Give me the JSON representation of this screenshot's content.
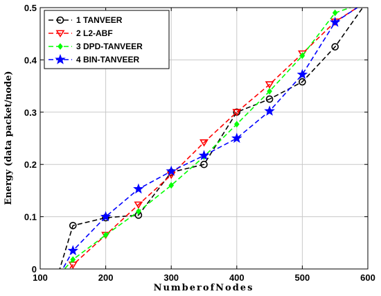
{
  "chart_data": {
    "type": "line",
    "xlabel": "NumberofNodes",
    "ylabel": "Energy (data packet/node)",
    "xlim": [
      100,
      600
    ],
    "ylim": [
      0,
      0.5
    ],
    "xticks": [
      100,
      200,
      300,
      400,
      500,
      600
    ],
    "yticks": [
      0,
      0.1,
      0.2,
      0.3,
      0.4,
      0.5
    ],
    "xtick_labels": [
      "100",
      "200",
      "300",
      "400",
      "500",
      "600"
    ],
    "ytick_labels": [
      "0",
      "0.1",
      "0.2",
      "0.3",
      "0.4",
      "0.5"
    ],
    "grid": true,
    "legend_position": "top-left",
    "series": [
      {
        "name": "1 TANVEER",
        "color": "#000000",
        "marker": "circle",
        "x": [
          125,
          150,
          200,
          250,
          300,
          350,
          400,
          450,
          500,
          550,
          595
        ],
        "y": [
          -0.02,
          0.083,
          0.098,
          0.103,
          0.185,
          0.2,
          0.3,
          0.325,
          0.358,
          0.425,
          0.505
        ],
        "marker_x": [
          150,
          200,
          250,
          300,
          350,
          400,
          450,
          500,
          550
        ],
        "marker_y": [
          0.083,
          0.098,
          0.103,
          0.185,
          0.2,
          0.3,
          0.325,
          0.358,
          0.425
        ]
      },
      {
        "name": "2 L2-ABF",
        "color": "#ff0000",
        "marker": "triangle-down",
        "x": [
          130,
          150,
          200,
          250,
          300,
          350,
          400,
          450,
          500,
          550,
          590
        ],
        "y": [
          -0.02,
          0.008,
          0.065,
          0.123,
          0.18,
          0.242,
          0.3,
          0.353,
          0.412,
          0.473,
          0.505
        ],
        "marker_x": [
          150,
          200,
          250,
          300,
          350,
          400,
          450,
          500,
          550
        ],
        "marker_y": [
          0.008,
          0.065,
          0.123,
          0.18,
          0.242,
          0.3,
          0.353,
          0.412,
          0.473
        ]
      },
      {
        "name": "3 DPD-TANVEER",
        "color": "#00ff00",
        "marker": "diamond",
        "x": [
          130,
          150,
          200,
          250,
          300,
          350,
          400,
          450,
          500,
          550,
          585
        ],
        "y": [
          -0.01,
          0.018,
          0.065,
          0.11,
          0.16,
          0.215,
          0.277,
          0.34,
          0.408,
          0.49,
          0.505
        ],
        "marker_x": [
          150,
          200,
          250,
          300,
          350,
          400,
          450,
          500,
          550
        ],
        "marker_y": [
          0.018,
          0.065,
          0.11,
          0.16,
          0.215,
          0.277,
          0.34,
          0.408,
          0.49
        ]
      },
      {
        "name": "4 BIN-TANVEER",
        "color": "#0000ff",
        "marker": "star",
        "x": [
          130,
          150,
          200,
          250,
          300,
          350,
          400,
          450,
          500,
          550,
          590
        ],
        "y": [
          -0.01,
          0.035,
          0.1,
          0.153,
          0.187,
          0.217,
          0.25,
          0.302,
          0.372,
          0.472,
          0.505
        ],
        "marker_x": [
          150,
          200,
          250,
          300,
          350,
          400,
          450,
          500,
          550
        ],
        "marker_y": [
          0.035,
          0.1,
          0.153,
          0.187,
          0.217,
          0.25,
          0.302,
          0.372,
          0.472
        ]
      }
    ]
  }
}
